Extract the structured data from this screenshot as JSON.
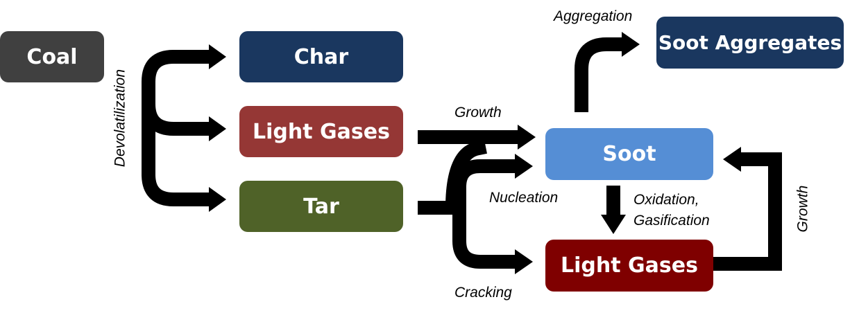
{
  "nodes": {
    "coal": {
      "label": "Coal",
      "color": "#404040"
    },
    "char": {
      "label": "Char",
      "color": "#1a375f"
    },
    "light_gases_1": {
      "label": "Light Gases",
      "color": "#953735"
    },
    "tar": {
      "label": "Tar",
      "color": "#4f6228"
    },
    "soot": {
      "label": "Soot",
      "color": "#558ed5"
    },
    "soot_aggregates": {
      "label": "Soot Aggregates",
      "color": "#1a375f"
    },
    "light_gases_2": {
      "label": "Light Gases",
      "color": "#7f0000"
    }
  },
  "edge_labels": {
    "devolatilization": "Devolatilization",
    "growth_top": "Growth",
    "nucleation": "Nucleation",
    "cracking": "Cracking",
    "aggregation": "Aggregation",
    "oxidation_line1": "Oxidation,",
    "oxidation_line2": "Gasification",
    "growth_right": "Growth"
  },
  "arrow_color": "#000000"
}
